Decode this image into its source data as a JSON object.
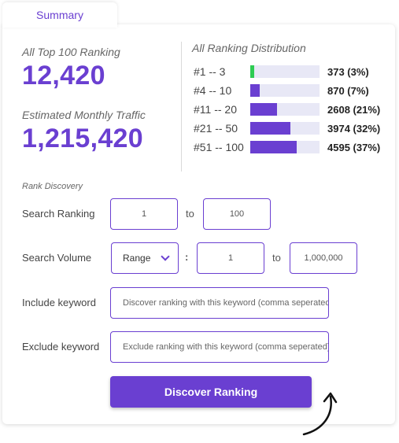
{
  "tab": {
    "label": "Summary"
  },
  "stats": {
    "top100_label": "All Top 100 Ranking",
    "top100_value": "12,420",
    "traffic_label": "Estimated Monthly Traffic",
    "traffic_value": "1,215,420"
  },
  "distribution": {
    "title": "All Ranking Distribution",
    "rows": [
      {
        "label": "#1 -- 3",
        "value": "373 (3%)",
        "fraction": 0.06,
        "color": "#2ecc53"
      },
      {
        "label": "#4 -- 10",
        "value": "870 (7%)",
        "fraction": 0.14,
        "color": "#6a3fd1"
      },
      {
        "label": "#11 -- 20",
        "value": "2608 (21%)",
        "fraction": 0.39,
        "color": "#6a3fd1"
      },
      {
        "label": "#21 -- 50",
        "value": "3974 (32%)",
        "fraction": 0.58,
        "color": "#6a3fd1"
      },
      {
        "label": "#51 -- 100",
        "value": "4595 (37%)",
        "fraction": 0.67,
        "color": "#6a3fd1"
      }
    ]
  },
  "discovery": {
    "title": "Rank Discovery",
    "search_ranking_label": "Search Ranking",
    "ranking_from": "1",
    "ranking_to": "100",
    "to_text": "to",
    "search_volume_label": "Search Volume",
    "volume_mode": "Range",
    "colon": ":",
    "volume_from": "1",
    "volume_to": "1,000,000",
    "include_label": "Include keyword",
    "include_placeholder": "Discover ranking with this keyword (comma seperated)",
    "exclude_label": "Exclude keyword",
    "exclude_placeholder": "Exclude ranking with this keyword (comma seperated)",
    "button_label": "Discover Ranking"
  },
  "colors": {
    "accent": "#6a3fd1",
    "green": "#2ecc53",
    "track": "#e8e8f6"
  },
  "icons": {
    "select_chevron": "chevron-down-icon",
    "decorative_arrow": "curved-arrow-icon"
  }
}
